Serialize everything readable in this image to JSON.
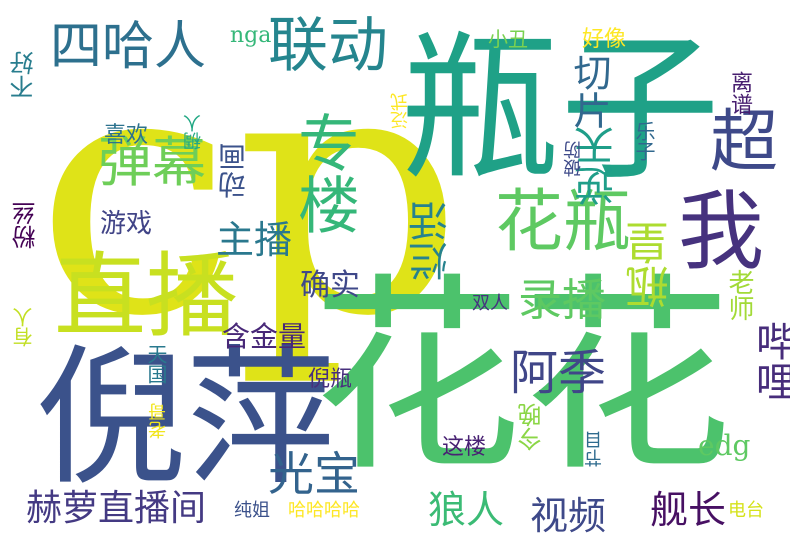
{
  "canvas": {
    "background": "#ffffff"
  },
  "words": [
    {
      "id": "cp",
      "text": "cp",
      "color": "#dfe318"
    },
    {
      "id": "huahua",
      "text": "花花",
      "color": "#4cc26c"
    },
    {
      "id": "pingzi",
      "text": "瓶子",
      "color": "#1fa187"
    },
    {
      "id": "niping",
      "text": "倪萍",
      "color": "#3b528b"
    },
    {
      "id": "zhibo",
      "text": "直播",
      "color": "#c8e020"
    },
    {
      "id": "siharen",
      "text": "四哈人",
      "color": "#2d708e"
    },
    {
      "id": "liandong",
      "text": "联动",
      "color": "#25858e"
    },
    {
      "id": "huaping",
      "text": "花瓶",
      "color": "#5ec962"
    },
    {
      "id": "danmu",
      "text": "弹幕",
      "color": "#6ece58"
    },
    {
      "id": "wo",
      "text": "我",
      "color": "#46327e"
    },
    {
      "id": "chao",
      "text": "超",
      "color": "#3e4989"
    },
    {
      "id": "qiepian",
      "text": "切片",
      "color": "#31688e"
    },
    {
      "id": "zhuanlou",
      "text": "专楼",
      "color": "#35b779"
    },
    {
      "id": "zhubo",
      "text": "主播",
      "color": "#2a788e"
    },
    {
      "id": "donghua",
      "text": "动画",
      "color": "#3b528b"
    },
    {
      "id": "nitian",
      "text": "逆天",
      "color": "#1f9e89"
    },
    {
      "id": "lanhuo",
      "text": "烂活",
      "color": "#26828e"
    },
    {
      "id": "luzhi",
      "text": "录播",
      "color": "#5ec962"
    },
    {
      "id": "pinghuang",
      "text": "瓶皇",
      "color": "#addc30"
    },
    {
      "id": "bilibili",
      "text": "哔哩",
      "color": "#472d7b"
    },
    {
      "id": "aji",
      "text": "阿季",
      "color": "#404688"
    },
    {
      "id": "queshi",
      "text": "确实",
      "color": "#3f4889"
    },
    {
      "id": "hanjinliang",
      "text": "含金量",
      "color": "#482878"
    },
    {
      "id": "guangbao",
      "text": "光宝",
      "color": "#33638d"
    },
    {
      "id": "heluo",
      "text": "赫萝直播间",
      "color": "#443a83"
    },
    {
      "id": "langren",
      "text": "狼人",
      "color": "#3bbb75"
    },
    {
      "id": "shipin",
      "text": "视频",
      "color": "#3e4989"
    },
    {
      "id": "jianzhang",
      "text": "舰长",
      "color": "#471063"
    },
    {
      "id": "edg",
      "text": "edg",
      "color": "#5ec962"
    },
    {
      "id": "youxi",
      "text": "游戏",
      "color": "#414487"
    },
    {
      "id": "xihuan",
      "text": "喜欢",
      "color": "#2c728e"
    },
    {
      "id": "buhao",
      "text": "不好",
      "color": "#287d8e"
    },
    {
      "id": "nga",
      "text": "nga",
      "color": "#35b779"
    },
    {
      "id": "xiaochou",
      "text": "小丑",
      "color": "#7ad151"
    },
    {
      "id": "haoxiang",
      "text": "好像",
      "color": "#fde725"
    },
    {
      "id": "lipu",
      "text": "离谱",
      "color": "#481f70"
    },
    {
      "id": "fanshi",
      "text": "泛式",
      "color": "#fde725"
    },
    {
      "id": "pofang",
      "text": "破防",
      "color": "#3e4a89"
    },
    {
      "id": "lezi",
      "text": "乐子",
      "color": "#31688e"
    },
    {
      "id": "chouren",
      "text": "稠人",
      "color": "#22a884"
    },
    {
      "id": "fensi",
      "text": "粉丝",
      "color": "#440154"
    },
    {
      "id": "youren",
      "text": "有人",
      "color": "#c2df23"
    },
    {
      "id": "shuangren",
      "text": "双人",
      "color": "#46337f"
    },
    {
      "id": "laoshi",
      "text": "老师",
      "color": "#a2da37"
    },
    {
      "id": "tianguo",
      "text": "天国",
      "color": "#29798e"
    },
    {
      "id": "niping2",
      "text": "倪瓶",
      "color": "#472f7d"
    },
    {
      "id": "laoge",
      "text": "老哥",
      "color": "#f1e51d"
    },
    {
      "id": "zhelou",
      "text": "这楼",
      "color": "#482173"
    },
    {
      "id": "jinwan",
      "text": "今晚",
      "color": "#8bd646"
    },
    {
      "id": "jiemu",
      "text": "节目",
      "color": "#2f6b8e"
    },
    {
      "id": "chunjie",
      "text": "纯姐",
      "color": "#3b518b"
    },
    {
      "id": "hahaha",
      "text": "哈哈哈哈",
      "color": "#fde725"
    },
    {
      "id": "diantai",
      "text": "电台",
      "color": "#d5e21a"
    }
  ]
}
